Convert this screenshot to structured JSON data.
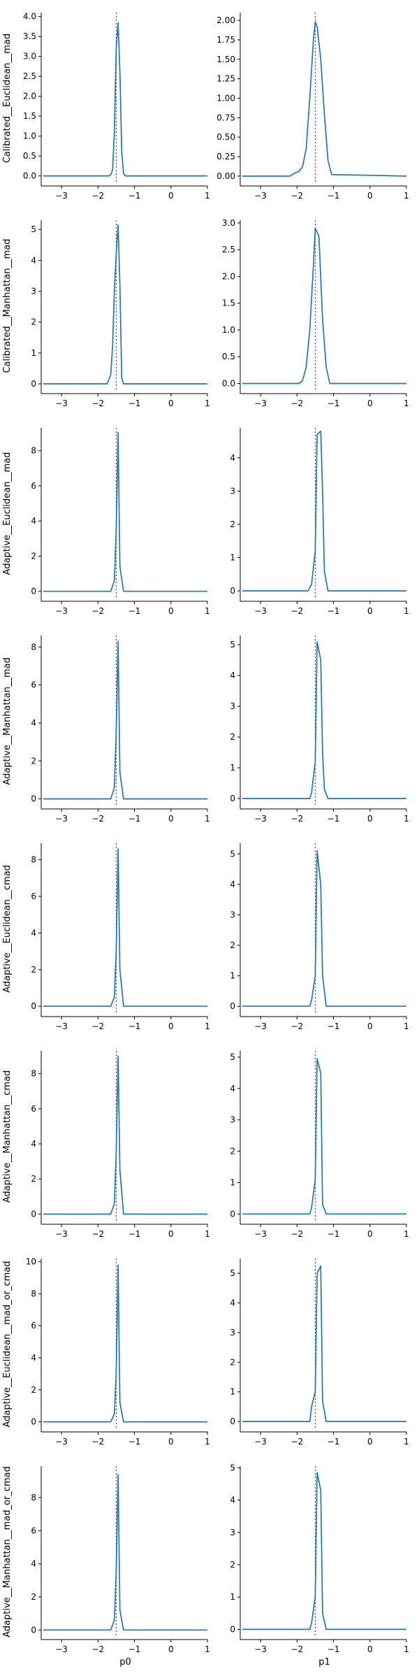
{
  "colors": {
    "series": "#1f77b4",
    "reference": "#333333"
  },
  "chart_data": [
    {
      "type": "line",
      "ylabel": "Calibrated__Euclidean__mad",
      "xlabel": "",
      "xlim": [
        -3.5,
        1
      ],
      "ylim": [
        -0.2,
        4.1
      ],
      "xticks": [
        -3,
        -2,
        -1,
        0,
        1
      ],
      "xtick_labels": [
        "−3",
        "−2",
        "−1",
        "0",
        "1"
      ],
      "yticks": [
        0,
        0.5,
        1,
        1.5,
        2,
        2.5,
        3,
        3.5,
        4
      ],
      "ytick_labels": [
        "0.0",
        "0.5",
        "1.0",
        "1.5",
        "2.0",
        "2.5",
        "3.0",
        "3.5",
        "4.0"
      ],
      "reference_x": -1.5,
      "series": [
        {
          "x": [
            -3.5,
            -1.7,
            -1.65,
            -1.6,
            -1.55,
            -1.5,
            -1.45,
            -1.4,
            -1.35,
            -1.3,
            -1.25,
            1
          ],
          "y": [
            0,
            0,
            0.03,
            0.15,
            1.1,
            3.2,
            3.85,
            2.6,
            0.62,
            0.06,
            0,
            0
          ]
        }
      ]
    },
    {
      "type": "line",
      "ylabel": "",
      "xlabel": "",
      "xlim": [
        -3.5,
        1
      ],
      "ylim": [
        -0.1,
        2.1
      ],
      "xticks": [
        -3,
        -2,
        -1,
        0,
        1
      ],
      "xtick_labels": [
        "−3",
        "−2",
        "−1",
        "0",
        "1"
      ],
      "yticks": [
        0,
        0.25,
        0.5,
        0.75,
        1,
        1.25,
        1.5,
        1.75,
        2
      ],
      "ytick_labels": [
        "0.00",
        "0.25",
        "0.50",
        "0.75",
        "1.00",
        "1.25",
        "1.50",
        "1.75",
        "2.00"
      ],
      "reference_x": -1.5,
      "series": [
        {
          "x": [
            -3.5,
            -2.2,
            -2.05,
            -1.95,
            -1.85,
            -1.75,
            -1.65,
            -1.55,
            -1.5,
            -1.45,
            -1.35,
            -1.25,
            -1.15,
            -1.05,
            1
          ],
          "y": [
            0,
            0,
            0.04,
            0.06,
            0.12,
            0.35,
            1.0,
            1.75,
            1.98,
            1.92,
            1.5,
            0.8,
            0.2,
            0.02,
            0
          ]
        }
      ]
    },
    {
      "type": "line",
      "ylabel": "Calibrated__Manhattan__mad",
      "xlabel": "",
      "xlim": [
        -3.5,
        1
      ],
      "ylim": [
        -0.25,
        5.3
      ],
      "xticks": [
        -3,
        -2,
        -1,
        0,
        1
      ],
      "xtick_labels": [
        "−3",
        "−2",
        "−1",
        "0",
        "1"
      ],
      "yticks": [
        0,
        1,
        2,
        3,
        4,
        5
      ],
      "ytick_labels": [
        "0",
        "1",
        "2",
        "3",
        "4",
        "5"
      ],
      "reference_x": -1.5,
      "series": [
        {
          "x": [
            -3.5,
            -1.75,
            -1.65,
            -1.6,
            -1.55,
            -1.5,
            -1.45,
            -1.4,
            -1.35,
            -1.3,
            1
          ],
          "y": [
            0,
            0,
            0.3,
            1.2,
            3.0,
            4.2,
            5.15,
            3.2,
            0.2,
            0,
            0
          ]
        }
      ]
    },
    {
      "type": "line",
      "ylabel": "",
      "xlabel": "",
      "xlim": [
        -3.5,
        1
      ],
      "ylim": [
        -0.15,
        3.05
      ],
      "xticks": [
        -3,
        -2,
        -1,
        0,
        1
      ],
      "xtick_labels": [
        "−3",
        "−2",
        "−1",
        "0",
        "1"
      ],
      "yticks": [
        0,
        0.5,
        1,
        1.5,
        2,
        2.5,
        3
      ],
      "ytick_labels": [
        "0.0",
        "0.5",
        "1.0",
        "1.5",
        "2.0",
        "2.5",
        "3.0"
      ],
      "reference_x": -1.5,
      "series": [
        {
          "x": [
            -3.5,
            -1.95,
            -1.85,
            -1.75,
            -1.65,
            -1.55,
            -1.5,
            -1.4,
            -1.3,
            -1.2,
            -1.1,
            1
          ],
          "y": [
            0,
            0,
            0.05,
            0.3,
            1.0,
            2.2,
            2.9,
            2.75,
            1.2,
            0.3,
            0,
            0
          ]
        }
      ]
    },
    {
      "type": "line",
      "ylabel": "Adaptive__Euclidean__mad",
      "xlabel": "",
      "xlim": [
        -3.5,
        1
      ],
      "ylim": [
        -0.45,
        9.3
      ],
      "xticks": [
        -3,
        -2,
        -1,
        0,
        1
      ],
      "xtick_labels": [
        "−3",
        "−2",
        "−1",
        "0",
        "1"
      ],
      "yticks": [
        0,
        2,
        4,
        6,
        8
      ],
      "ytick_labels": [
        "0",
        "2",
        "4",
        "6",
        "8"
      ],
      "reference_x": -1.5,
      "series": [
        {
          "x": [
            -3.5,
            -1.65,
            -1.55,
            -1.5,
            -1.45,
            -1.4,
            -1.3,
            1
          ],
          "y": [
            0,
            0,
            0.6,
            3.5,
            9.05,
            1.4,
            0,
            0
          ]
        }
      ]
    },
    {
      "type": "line",
      "ylabel": "",
      "xlabel": "",
      "xlim": [
        -3.5,
        1
      ],
      "ylim": [
        -0.25,
        4.9
      ],
      "xticks": [
        -3,
        -2,
        -1,
        0,
        1
      ],
      "xtick_labels": [
        "−3",
        "−2",
        "−1",
        "0",
        "1"
      ],
      "yticks": [
        0,
        1,
        2,
        3,
        4
      ],
      "ytick_labels": [
        "0",
        "1",
        "2",
        "3",
        "4"
      ],
      "reference_x": -1.5,
      "series": [
        {
          "x": [
            -3.5,
            -1.7,
            -1.6,
            -1.5,
            -1.45,
            -1.35,
            -1.3,
            -1.25,
            -1.15,
            1
          ],
          "y": [
            0,
            0,
            0.2,
            1.2,
            4.7,
            4.8,
            3.0,
            0.6,
            0,
            0
          ]
        }
      ]
    },
    {
      "type": "line",
      "ylabel": "Adaptive__Manhattan__mad",
      "xlabel": "",
      "xlim": [
        -3.5,
        1
      ],
      "ylim": [
        -0.42,
        8.6
      ],
      "xticks": [
        -3,
        -2,
        -1,
        0,
        1
      ],
      "xtick_labels": [
        "−3",
        "−2",
        "−1",
        "0",
        "1"
      ],
      "yticks": [
        0,
        2,
        4,
        6,
        8
      ],
      "ytick_labels": [
        "0",
        "2",
        "4",
        "6",
        "8"
      ],
      "reference_x": -1.5,
      "series": [
        {
          "x": [
            -3.5,
            -1.65,
            -1.55,
            -1.5,
            -1.45,
            -1.4,
            -1.3,
            1
          ],
          "y": [
            0,
            0,
            0.6,
            3.5,
            8.3,
            1.4,
            0,
            0
          ]
        }
      ]
    },
    {
      "type": "line",
      "ylabel": "",
      "xlabel": "",
      "xlim": [
        -3.5,
        1
      ],
      "ylim": [
        -0.27,
        5.3
      ],
      "xticks": [
        -3,
        -2,
        -1,
        0,
        1
      ],
      "xtick_labels": [
        "−3",
        "−2",
        "−1",
        "0",
        "1"
      ],
      "yticks": [
        0,
        1,
        2,
        3,
        4,
        5
      ],
      "ytick_labels": [
        "0",
        "1",
        "2",
        "3",
        "4",
        "5"
      ],
      "reference_x": -1.5,
      "series": [
        {
          "x": [
            -3.5,
            -1.65,
            -1.6,
            -1.5,
            -1.45,
            -1.35,
            -1.3,
            -1.25,
            -1.15,
            1
          ],
          "y": [
            0,
            0,
            0.2,
            1.2,
            5.1,
            4.5,
            1.5,
            0.3,
            0,
            0
          ]
        }
      ]
    },
    {
      "type": "line",
      "ylabel": "Adaptive__Euclidean__cmad",
      "xlabel": "",
      "xlim": [
        -3.5,
        1
      ],
      "ylim": [
        -0.45,
        8.9
      ],
      "xticks": [
        -3,
        -2,
        -1,
        0,
        1
      ],
      "xtick_labels": [
        "−3",
        "−2",
        "−1",
        "0",
        "1"
      ],
      "yticks": [
        0,
        2,
        4,
        6,
        8
      ],
      "ytick_labels": [
        "0",
        "2",
        "4",
        "6",
        "8"
      ],
      "reference_x": -1.5,
      "series": [
        {
          "x": [
            -3.5,
            -1.65,
            -1.55,
            -1.5,
            -1.45,
            -1.4,
            -1.3,
            1
          ],
          "y": [
            0,
            0,
            0.5,
            3.0,
            8.6,
            2.0,
            0,
            0
          ]
        }
      ]
    },
    {
      "type": "line",
      "ylabel": "",
      "xlabel": "",
      "xlim": [
        -3.5,
        1
      ],
      "ylim": [
        -0.27,
        5.35
      ],
      "xticks": [
        -3,
        -2,
        -1,
        0,
        1
      ],
      "xtick_labels": [
        "−3",
        "−2",
        "−1",
        "0",
        "1"
      ],
      "yticks": [
        0,
        1,
        2,
        3,
        4,
        5
      ],
      "ytick_labels": [
        "0",
        "1",
        "2",
        "3",
        "4",
        "5"
      ],
      "reference_x": -1.5,
      "series": [
        {
          "x": [
            -3.5,
            -1.65,
            -1.6,
            -1.5,
            -1.45,
            -1.35,
            -1.3,
            -1.2,
            1
          ],
          "y": [
            0,
            0,
            0.2,
            1.0,
            5.1,
            4.0,
            1.0,
            0,
            0
          ]
        }
      ]
    },
    {
      "type": "line",
      "ylabel": "Adaptive__Manhattan__cmad",
      "xlabel": "",
      "xlim": [
        -3.5,
        1
      ],
      "ylim": [
        -0.46,
        9.3
      ],
      "xticks": [
        -3,
        -2,
        -1,
        0,
        1
      ],
      "xtick_labels": [
        "−3",
        "−2",
        "−1",
        "0",
        "1"
      ],
      "yticks": [
        0,
        2,
        4,
        6,
        8
      ],
      "ytick_labels": [
        "0",
        "2",
        "4",
        "6",
        "8"
      ],
      "reference_x": -1.5,
      "series": [
        {
          "x": [
            -3.5,
            -1.65,
            -1.55,
            -1.5,
            -1.45,
            -1.4,
            -1.3,
            1
          ],
          "y": [
            0,
            0,
            0.6,
            3.5,
            9.0,
            2.5,
            0,
            0
          ]
        }
      ]
    },
    {
      "type": "line",
      "ylabel": "",
      "xlabel": "",
      "xlim": [
        -3.5,
        1
      ],
      "ylim": [
        -0.26,
        5.2
      ],
      "xticks": [
        -3,
        -2,
        -1,
        0,
        1
      ],
      "xtick_labels": [
        "−3",
        "−2",
        "−1",
        "0",
        "1"
      ],
      "yticks": [
        0,
        1,
        2,
        3,
        4,
        5
      ],
      "ytick_labels": [
        "0",
        "1",
        "2",
        "3",
        "4",
        "5"
      ],
      "reference_x": -1.5,
      "series": [
        {
          "x": [
            -3.5,
            -1.65,
            -1.6,
            -1.5,
            -1.45,
            -1.35,
            -1.3,
            -1.2,
            1
          ],
          "y": [
            0,
            0,
            0.2,
            1.1,
            4.95,
            4.5,
            0.3,
            0,
            0
          ]
        }
      ]
    },
    {
      "type": "line",
      "ylabel": "Adaptive__Euclidean__mad_or_cmad",
      "xlabel": "",
      "xlim": [
        -3.5,
        1
      ],
      "ylim": [
        -0.5,
        10.2
      ],
      "xticks": [
        -3,
        -2,
        -1,
        0,
        1
      ],
      "xtick_labels": [
        "−3",
        "−2",
        "−1",
        "0",
        "1"
      ],
      "yticks": [
        0,
        2,
        4,
        6,
        8,
        10
      ],
      "ytick_labels": [
        "0",
        "2",
        "4",
        "6",
        "8",
        "10"
      ],
      "reference_x": -1.5,
      "series": [
        {
          "x": [
            -3.5,
            -1.65,
            -1.55,
            -1.5,
            -1.45,
            -1.4,
            -1.3,
            1
          ],
          "y": [
            0,
            0,
            0.5,
            3.0,
            9.8,
            1.2,
            0,
            0
          ]
        }
      ]
    },
    {
      "type": "line",
      "ylabel": "",
      "xlabel": "",
      "xlim": [
        -3.5,
        1
      ],
      "ylim": [
        -0.28,
        5.5
      ],
      "xticks": [
        -3,
        -2,
        -1,
        0,
        1
      ],
      "xtick_labels": [
        "−3",
        "−2",
        "−1",
        "0",
        "1"
      ],
      "yticks": [
        0,
        1,
        2,
        3,
        4,
        5
      ],
      "ytick_labels": [
        "0",
        "1",
        "2",
        "3",
        "4",
        "5"
      ],
      "reference_x": -1.5,
      "series": [
        {
          "x": [
            -3.5,
            -1.65,
            -1.6,
            -1.5,
            -1.45,
            -1.35,
            -1.3,
            -1.2,
            1
          ],
          "y": [
            0,
            0,
            0.5,
            1.0,
            5.0,
            5.25,
            0.7,
            0,
            0
          ]
        }
      ]
    },
    {
      "type": "line",
      "ylabel": "Adaptive__Manhattan__mad_or_cmad",
      "xlabel": "p0",
      "xlim": [
        -3.5,
        1
      ],
      "ylim": [
        -0.45,
        9.9
      ],
      "xticks": [
        -3,
        -2,
        -1,
        0,
        1
      ],
      "xtick_labels": [
        "−3",
        "−2",
        "−1",
        "0",
        "1"
      ],
      "yticks": [
        0,
        2,
        4,
        6,
        8
      ],
      "ytick_labels": [
        "0",
        "2",
        "4",
        "6",
        "8"
      ],
      "reference_x": -1.5,
      "series": [
        {
          "x": [
            -3.5,
            -1.65,
            -1.55,
            -1.5,
            -1.45,
            -1.4,
            -1.3,
            1
          ],
          "y": [
            0,
            0,
            0.6,
            3.5,
            9.4,
            1.2,
            0,
            0
          ]
        }
      ]
    },
    {
      "type": "line",
      "ylabel": "",
      "xlabel": "p1",
      "xlim": [
        -3.5,
        1
      ],
      "ylim": [
        -0.25,
        5.05
      ],
      "xticks": [
        -3,
        -2,
        -1,
        0,
        1
      ],
      "xtick_labels": [
        "−3",
        "−2",
        "−1",
        "0",
        "1"
      ],
      "yticks": [
        0,
        1,
        2,
        3,
        4,
        5
      ],
      "ytick_labels": [
        "0",
        "1",
        "2",
        "3",
        "4",
        "5"
      ],
      "reference_x": -1.5,
      "series": [
        {
          "x": [
            -3.5,
            -1.65,
            -1.6,
            -1.5,
            -1.45,
            -1.35,
            -1.3,
            -1.2,
            1
          ],
          "y": [
            0,
            0,
            0.2,
            1.0,
            4.85,
            4.3,
            0.5,
            0,
            0
          ]
        }
      ]
    }
  ]
}
